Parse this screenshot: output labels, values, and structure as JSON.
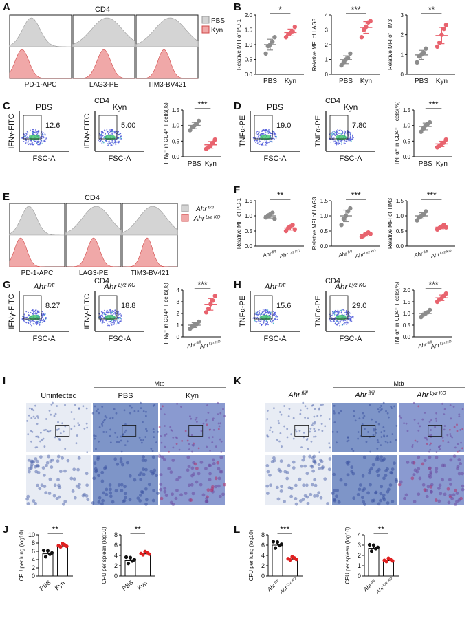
{
  "colors": {
    "pbs": "#8c8c8c",
    "kyn": "#e8636e",
    "hist_gray": "#d4d4d4",
    "hist_red": "#f0a8a8",
    "dots": "#4a55d8",
    "cfu_black": "#111111",
    "cfu_red": "#e02020"
  },
  "panel_letters": [
    "A",
    "B",
    "C",
    "D",
    "E",
    "F",
    "G",
    "H",
    "I",
    "K",
    "J",
    "L"
  ],
  "A": {
    "title": "CD4",
    "legend": [
      "PBS",
      "Kyn"
    ],
    "markers": [
      "PD-1-APC",
      "LAG3-PE",
      "TIM3-BV421"
    ]
  },
  "B": {
    "ylabels": [
      "Relative MFI of PD-1",
      "Relative MFI of LAG3",
      "Relative MFI of TIM3"
    ],
    "groups": [
      "PBS",
      "Kyn"
    ],
    "sig": [
      "*",
      "***",
      "**"
    ],
    "ticks": [
      [
        "0.0",
        "0.5",
        "1.0",
        "1.5",
        "2.0"
      ],
      [
        "0",
        "1",
        "2",
        "3",
        "4"
      ],
      [
        "0",
        "1",
        "2",
        "3"
      ]
    ]
  },
  "C": {
    "title": "CD4",
    "headers": [
      "PBS",
      "Kyn"
    ],
    "ylabel": "IFNγ-FITC",
    "xlabel": "FSC-A",
    "gates": [
      "12.6",
      "5.00"
    ],
    "bar_ylabel": "IFNγ⁺ in CD4⁺ T cells(%)",
    "groups": [
      "PBS",
      "Kyn"
    ],
    "sig": "***",
    "ticks": [
      "0.0",
      "0.5",
      "1.0",
      "1.5"
    ]
  },
  "D": {
    "title": "CD4",
    "headers": [
      "PBS",
      "Kyn"
    ],
    "ylabel": "TNFα-PE",
    "xlabel": "FSC-A",
    "gates": [
      "19.0",
      "7.80"
    ],
    "bar_ylabel": "TNFα⁺ in CD4⁺ T cells(%)",
    "groups": [
      "PBS",
      "Kyn"
    ],
    "sig": "***",
    "ticks": [
      "0.0",
      "0.5",
      "1.0",
      "1.5"
    ]
  },
  "E": {
    "title": "CD4",
    "legend": [
      "Ahr fl/fl",
      "Ahr Lyz KO"
    ],
    "markers": [
      "PD-1-APC",
      "LAG3-PE",
      "TIM3-BV421"
    ]
  },
  "F": {
    "ylabels": [
      "Relative MFI of PD-1",
      "Relative MFI of LAG3",
      "Relative MFI of TIM3"
    ],
    "groups": [
      "Ahr fl/fl",
      "Ahr Lyz KO"
    ],
    "sig": [
      "**",
      "***",
      "***"
    ],
    "ticks": [
      [
        "0.0",
        "0.5",
        "1.0",
        "1.5"
      ],
      [
        "0.0",
        "0.5",
        "1.0",
        "1.5"
      ],
      [
        "0.0",
        "0.5",
        "1.0",
        "1.5"
      ]
    ]
  },
  "G": {
    "title": "CD4",
    "headers": [
      "Ahr fl/fl",
      "Ahr Lyz KO"
    ],
    "ylabel": "IFNγ-FITC",
    "xlabel": "FSC-A",
    "gates": [
      "8.27",
      "18.8"
    ],
    "bar_ylabel": "IFNγ⁺ in CD4⁺ T cells(%)",
    "groups": [
      "Ahr fl/fl",
      "Ahr Lyz KO"
    ],
    "sig": "***",
    "ticks": [
      "0",
      "1",
      "2",
      "3",
      "4"
    ]
  },
  "H": {
    "title": "CD4",
    "headers": [
      "Ahr fl/fl",
      "Ahr Lyz KO"
    ],
    "ylabel": "TNFα-PE",
    "xlabel": "FSC-A",
    "gates": [
      "15.6",
      "29.0"
    ],
    "bar_ylabel": "TNFα⁺ in CD4⁺ T cells(%)",
    "groups": [
      "Ahr fl/fl",
      "Ahr Lyz KO"
    ],
    "sig": "***",
    "ticks": [
      "0.0",
      "0.5",
      "1.0",
      "1.5",
      "2.0"
    ]
  },
  "I": {
    "labels": [
      "Uninfected",
      "PBS",
      "Kyn"
    ],
    "mtb": "Mtb"
  },
  "K": {
    "labels": [
      "Ahr fl/fl",
      "Ahr fl/fl",
      "Ahr Lyz KO"
    ],
    "mtb": "Mtb"
  },
  "J": {
    "ylabels": [
      "CFU per lung (log10)",
      "CFU per spleen (log10)"
    ],
    "groups": [
      "PBS",
      "Kyn"
    ],
    "sig": [
      "**",
      "**"
    ],
    "ticks": [
      [
        "0",
        "2",
        "4",
        "6",
        "8",
        "10"
      ],
      [
        "0",
        "2",
        "4",
        "6",
        "8"
      ]
    ]
  },
  "L": {
    "ylabels": [
      "CFU per lung (log10)",
      "CFU per spleen (log10)"
    ],
    "groups": [
      "Ahr fl/fl",
      "Ahr Lyz KO"
    ],
    "sig": [
      "***",
      "**"
    ],
    "ticks": [
      [
        "0",
        "2",
        "4",
        "6",
        "8"
      ],
      [
        "0",
        "1",
        "2",
        "3",
        "4"
      ]
    ]
  },
  "chart_data": [
    {
      "type": "scatter",
      "panel": "B1",
      "ylabel": "Relative MFI of PD-1",
      "categories": [
        "PBS",
        "Kyn"
      ],
      "ylim": [
        0,
        2
      ],
      "series": [
        {
          "name": "PBS",
          "values": [
            0.7,
            0.95,
            1.0,
            1.1,
            1.25
          ]
        },
        {
          "name": "Kyn",
          "values": [
            1.25,
            1.35,
            1.4,
            1.45,
            1.6
          ]
        }
      ]
    },
    {
      "type": "scatter",
      "panel": "B2",
      "ylabel": "Relative MFI of LAG3",
      "categories": [
        "PBS",
        "Kyn"
      ],
      "ylim": [
        0,
        4
      ],
      "series": [
        {
          "name": "PBS",
          "values": [
            0.6,
            0.8,
            1.0,
            1.1,
            1.4
          ]
        },
        {
          "name": "Kyn",
          "values": [
            2.5,
            3.0,
            3.2,
            3.5,
            3.6
          ]
        }
      ]
    },
    {
      "type": "scatter",
      "panel": "B3",
      "ylabel": "Relative MFI of TIM3",
      "categories": [
        "PBS",
        "Kyn"
      ],
      "ylim": [
        0,
        3
      ],
      "series": [
        {
          "name": "PBS",
          "values": [
            0.6,
            0.9,
            1.0,
            1.1,
            1.3
          ]
        },
        {
          "name": "Kyn",
          "values": [
            1.4,
            1.6,
            2.0,
            2.3,
            2.5
          ]
        }
      ]
    },
    {
      "type": "scatter",
      "panel": "C",
      "ylabel": "IFNγ⁺ in CD4⁺ T cells(%)",
      "categories": [
        "PBS",
        "Kyn"
      ],
      "ylim": [
        0,
        1.5
      ],
      "series": [
        {
          "name": "PBS",
          "values": [
            0.85,
            0.95,
            1.0,
            1.05,
            1.15
          ]
        },
        {
          "name": "Kyn",
          "values": [
            0.25,
            0.3,
            0.35,
            0.45,
            0.55
          ]
        }
      ]
    },
    {
      "type": "scatter",
      "panel": "D",
      "ylabel": "TNFα⁺ in CD4⁺ T cells(%)",
      "categories": [
        "PBS",
        "Kyn"
      ],
      "ylim": [
        0,
        1.5
      ],
      "series": [
        {
          "name": "PBS",
          "values": [
            0.8,
            0.9,
            1.0,
            1.05,
            1.1
          ]
        },
        {
          "name": "Kyn",
          "values": [
            0.3,
            0.35,
            0.4,
            0.45,
            0.55
          ]
        }
      ]
    },
    {
      "type": "scatter",
      "panel": "F1",
      "ylabel": "Relative MFI of PD-1",
      "categories": [
        "Ahr fl/fl",
        "Ahr Lyz KO"
      ],
      "ylim": [
        0,
        1.5
      ],
      "series": [
        {
          "name": "Ahr fl/fl",
          "values": [
            0.95,
            1.0,
            1.05,
            1.1,
            0.9
          ]
        },
        {
          "name": "Ahr Lyz KO",
          "values": [
            0.5,
            0.6,
            0.65,
            0.7,
            0.55
          ]
        }
      ]
    },
    {
      "type": "scatter",
      "panel": "F2",
      "ylabel": "Relative MFI of LAG3",
      "categories": [
        "Ahr fl/fl",
        "Ahr Lyz KO"
      ],
      "ylim": [
        0,
        1.5
      ],
      "series": [
        {
          "name": "Ahr fl/fl",
          "values": [
            0.7,
            0.9,
            1.0,
            1.15,
            1.25
          ]
        },
        {
          "name": "Ahr Lyz KO",
          "values": [
            0.3,
            0.35,
            0.4,
            0.45,
            0.4
          ]
        }
      ]
    },
    {
      "type": "scatter",
      "panel": "F3",
      "ylabel": "Relative MFI of TIM3",
      "categories": [
        "Ahr fl/fl",
        "Ahr Lyz KO"
      ],
      "ylim": [
        0,
        1.5
      ],
      "series": [
        {
          "name": "Ahr fl/fl",
          "values": [
            0.85,
            0.95,
            1.0,
            1.05,
            1.15
          ]
        },
        {
          "name": "Ahr Lyz KO",
          "values": [
            0.55,
            0.6,
            0.65,
            0.7,
            0.62
          ]
        }
      ]
    },
    {
      "type": "scatter",
      "panel": "G",
      "ylabel": "IFNγ⁺ in CD4⁺ T cells(%)",
      "categories": [
        "Ahr fl/fl",
        "Ahr Lyz KO"
      ],
      "ylim": [
        0,
        4
      ],
      "series": [
        {
          "name": "Ahr fl/fl",
          "values": [
            0.7,
            0.9,
            1.0,
            1.1,
            1.3
          ]
        },
        {
          "name": "Ahr Lyz KO",
          "values": [
            2.1,
            2.4,
            2.8,
            3.1,
            3.5
          ]
        }
      ]
    },
    {
      "type": "scatter",
      "panel": "H",
      "ylabel": "TNFα⁺ in CD4⁺ T cells(%)",
      "categories": [
        "Ahr fl/fl",
        "Ahr Lyz KO"
      ],
      "ylim": [
        0,
        2
      ],
      "series": [
        {
          "name": "Ahr fl/fl",
          "values": [
            0.85,
            0.95,
            1.0,
            1.05,
            1.15
          ]
        },
        {
          "name": "Ahr Lyz KO",
          "values": [
            1.5,
            1.6,
            1.65,
            1.75,
            1.85
          ]
        }
      ]
    },
    {
      "type": "bar",
      "panel": "J1",
      "ylabel": "CFU per lung (log10)",
      "categories": [
        "PBS",
        "Kyn"
      ],
      "ylim": [
        0,
        10
      ],
      "values": [
        5.4,
        7.3
      ]
    },
    {
      "type": "bar",
      "panel": "J2",
      "ylabel": "CFU per spleen (log10)",
      "categories": [
        "PBS",
        "Kyn"
      ],
      "ylim": [
        0,
        8
      ],
      "values": [
        3.0,
        4.3
      ]
    },
    {
      "type": "bar",
      "panel": "L1",
      "ylabel": "CFU per lung (log10)",
      "categories": [
        "Ahr fl/fl",
        "Ahr Lyz KO"
      ],
      "ylim": [
        0,
        8
      ],
      "values": [
        6.0,
        3.3
      ]
    },
    {
      "type": "bar",
      "panel": "L2",
      "ylabel": "CFU per spleen (log10)",
      "categories": [
        "Ahr fl/fl",
        "Ahr Lyz KO"
      ],
      "ylim": [
        0,
        4
      ],
      "values": [
        2.7,
        1.5
      ]
    }
  ]
}
